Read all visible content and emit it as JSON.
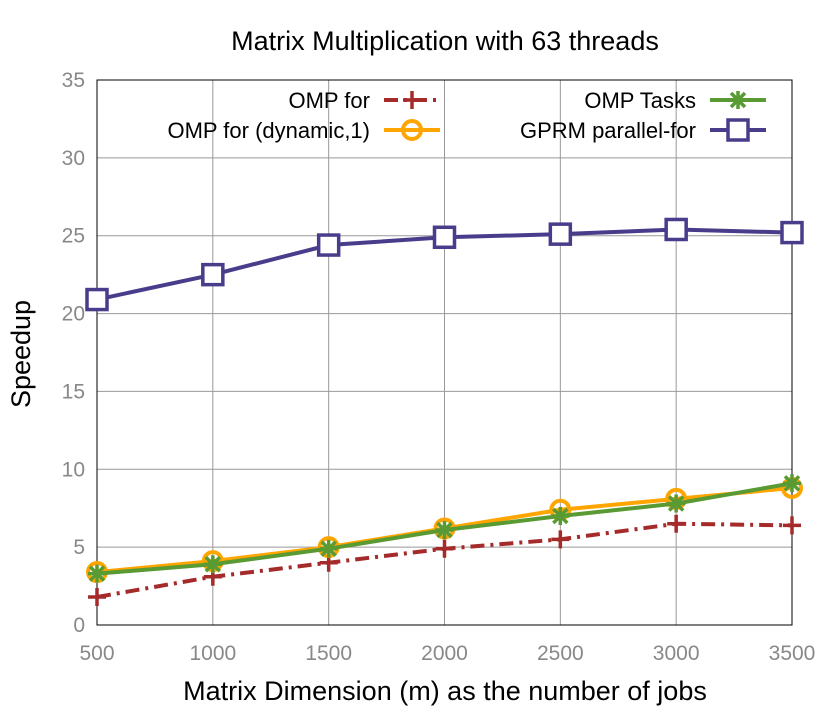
{
  "chart_data": {
    "type": "line",
    "title": "Matrix Multiplication with 63 threads",
    "xlabel": "Matrix Dimension (m) as the number of jobs",
    "ylabel": "Speedup",
    "xlim": [
      500,
      3500
    ],
    "ylim": [
      0,
      35
    ],
    "x": [
      500,
      1000,
      1500,
      2000,
      2500,
      3000,
      3500
    ],
    "xticks": [
      "500",
      "1000",
      "1500",
      "2000",
      "2500",
      "3000",
      "3500"
    ],
    "yticks": [
      "0",
      "5",
      "10",
      "15",
      "20",
      "25",
      "30",
      "35"
    ],
    "grid": true,
    "legend_position": "top",
    "series": [
      {
        "name": "OMP for",
        "color": "#A52A2A",
        "marker": "plus",
        "dash": "dashdot",
        "values": [
          1.8,
          3.1,
          4.0,
          4.9,
          5.5,
          6.5,
          6.4
        ]
      },
      {
        "name": "OMP for (dynamic,1)",
        "color": "#FFA500",
        "marker": "circle",
        "dash": "solid",
        "values": [
          3.4,
          4.1,
          5.0,
          6.2,
          7.4,
          8.1,
          8.8
        ]
      },
      {
        "name": "OMP Tasks",
        "color": "#5A9A32",
        "marker": "star",
        "dash": "solid",
        "values": [
          3.3,
          3.9,
          4.9,
          6.1,
          7.0,
          7.8,
          9.1
        ]
      },
      {
        "name": "GPRM parallel-for",
        "color": "#483D8B",
        "marker": "square",
        "dash": "solid",
        "values": [
          20.9,
          22.5,
          24.4,
          24.9,
          25.1,
          25.4,
          25.2
        ]
      }
    ]
  }
}
